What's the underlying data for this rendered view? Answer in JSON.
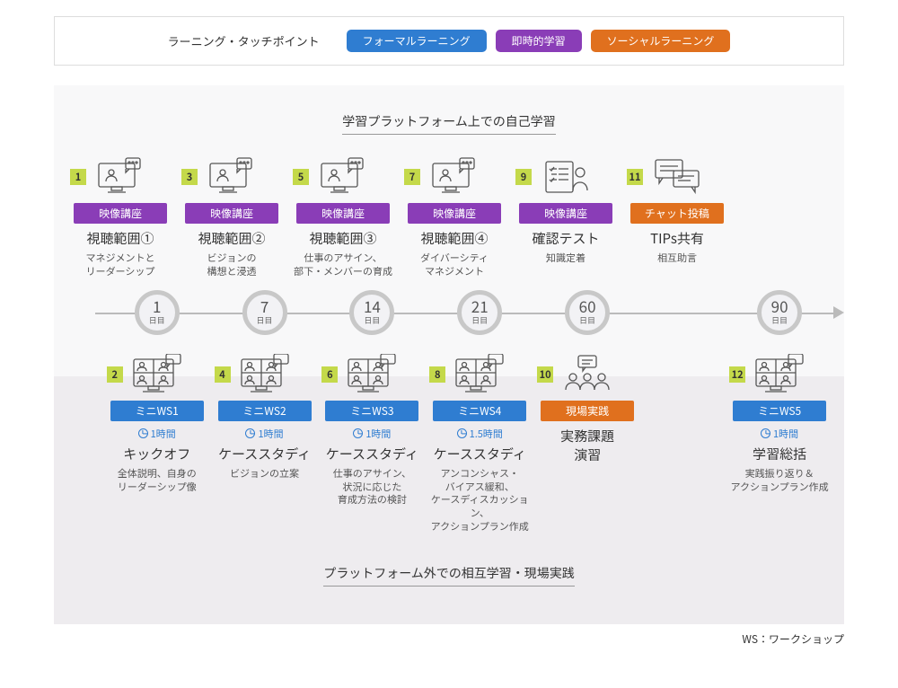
{
  "colors": {
    "blue": "#2f7dd1",
    "purple": "#8a3db7",
    "orange": "#e0701e",
    "badge": "#c4d94a",
    "page_bg": "#ffffff",
    "panel_top": "#f8f8f9",
    "panel_bottom": "#eeecef",
    "ring": "#c8c8c8",
    "text": "#333333"
  },
  "legend": {
    "title": "ラーニング・タッチポイント",
    "items": [
      {
        "label": "フォーマルラーニング",
        "colorKey": "blue"
      },
      {
        "label": "即時的学習",
        "colorKey": "purple"
      },
      {
        "label": "ソーシャルラーニング",
        "colorKey": "orange"
      }
    ]
  },
  "topSection": {
    "heading": "学習プラットフォーム上での自己学習",
    "cards": [
      {
        "num": "1",
        "numColorKey": "badge",
        "tag": "映像講座",
        "tagColorKey": "purple",
        "title": "視聴範囲①",
        "sub": "マネジメントと\nリーダーシップ",
        "icon": "screen"
      },
      {
        "num": "3",
        "numColorKey": "badge",
        "tag": "映像講座",
        "tagColorKey": "purple",
        "title": "視聴範囲②",
        "sub": "ビジョンの\n構想と浸透",
        "icon": "screen"
      },
      {
        "num": "5",
        "numColorKey": "badge",
        "tag": "映像講座",
        "tagColorKey": "purple",
        "title": "視聴範囲③",
        "sub": "仕事のアサイン、\n部下・メンバーの育成",
        "icon": "screen"
      },
      {
        "num": "7",
        "numColorKey": "badge",
        "tag": "映像講座",
        "tagColorKey": "purple",
        "title": "視聴範囲④",
        "sub": "ダイバーシティ\nマネジメント",
        "icon": "screen"
      },
      {
        "num": "9",
        "numColorKey": "badge",
        "tag": "映像講座",
        "tagColorKey": "purple",
        "title": "確認テスト",
        "sub": "知識定着",
        "icon": "test"
      },
      {
        "num": "11",
        "numColorKey": "badge",
        "tag": "チャット投稿",
        "tagColorKey": "orange",
        "title": "TIPs共有",
        "sub": "相互助言",
        "icon": "chat"
      }
    ]
  },
  "timeline": {
    "line_start_pct": 4,
    "line_end_pct": 100,
    "nodes": [
      {
        "num": "1",
        "label": "日目",
        "posPct": 12
      },
      {
        "num": "7",
        "label": "日目",
        "posPct": 26
      },
      {
        "num": "14",
        "label": "日目",
        "posPct": 40
      },
      {
        "num": "21",
        "label": "日目",
        "posPct": 54
      },
      {
        "num": "60",
        "label": "日目",
        "posPct": 68
      },
      {
        "num": "90",
        "label": "日目",
        "posPct": 93
      }
    ]
  },
  "bottomSection": {
    "heading": "プラットフォーム外での相互学習・現場実践",
    "cards": [
      {
        "num": "2",
        "numColorKey": "badge",
        "tag": "ミニWS1",
        "tagColorKey": "blue",
        "duration": "1時間",
        "title": "キックオフ",
        "sub": "全体説明、自身の\nリーダーシップ像",
        "icon": "meeting",
        "posPct": 12
      },
      {
        "num": "4",
        "numColorKey": "badge",
        "tag": "ミニWS2",
        "tagColorKey": "blue",
        "duration": "1時間",
        "title": "ケーススタディ",
        "sub": "ビジョンの立案",
        "icon": "meeting",
        "posPct": 26
      },
      {
        "num": "6",
        "numColorKey": "badge",
        "tag": "ミニWS3",
        "tagColorKey": "blue",
        "duration": "1時間",
        "title": "ケーススタディ",
        "sub": "仕事のアサイン、\n状況に応じた\n育成方法の検討",
        "icon": "meeting",
        "posPct": 40
      },
      {
        "num": "8",
        "numColorKey": "badge",
        "tag": "ミニWS4",
        "tagColorKey": "blue",
        "duration": "1.5時間",
        "title": "ケーススタディ",
        "sub": "アンコンシャス・\nバイアス緩和、\nケースディスカッション、\nアクションプラン作成",
        "icon": "meeting",
        "posPct": 54
      },
      {
        "num": "10",
        "numColorKey": "badge",
        "tag": "現場実践",
        "tagColorKey": "orange",
        "duration": "",
        "title": "実務課題\n演習",
        "sub": "",
        "icon": "practice",
        "posPct": 68
      },
      {
        "num": "12",
        "numColorKey": "badge",
        "tag": "ミニWS5",
        "tagColorKey": "blue",
        "duration": "1時間",
        "title": "学習総括",
        "sub": "実践振り返り＆\nアクションプラン作成",
        "icon": "meeting",
        "posPct": 93
      }
    ]
  },
  "footnote": "WS：ワークショップ"
}
